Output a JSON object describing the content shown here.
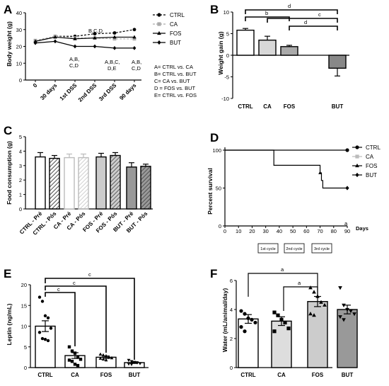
{
  "panels": {
    "A": {
      "letter": "A",
      "ylabel": "Body weight (g)",
      "yticks": [
        "0",
        "10",
        "20",
        "30",
        "40"
      ],
      "xticks": [
        "0",
        "30 days",
        "1st DSS",
        "2nd DSS",
        "3rd DSS",
        "90 days"
      ],
      "legend": [
        {
          "name": "CTRL",
          "marker": "circle",
          "color": "#000000",
          "dash": "3,2"
        },
        {
          "name": "CA",
          "marker": "square",
          "color": "#aaaaaa",
          "dash": "3,2"
        },
        {
          "name": "FOS",
          "marker": "triangle",
          "color": "#000000",
          "dash": ""
        },
        {
          "name": "BUT",
          "marker": "diamond",
          "color": "#000000",
          "dash": ""
        }
      ],
      "annotations": {
        "a1": "B,C,D",
        "a2_1": "A,B,",
        "a2_2": "C,D",
        "a3_1": "A,B,C,",
        "a3_2": "D,E",
        "a4_1": "A,B,",
        "a4_2": "C,D"
      },
      "key": [
        "A= CTRL vs. CA",
        "B= CTRL vs. BUT",
        "C= CA vs. BUT",
        "D = FOS vs. BUT",
        "E= CTRL vs. FOS"
      ]
    },
    "B": {
      "letter": "B",
      "ylabel": "Weight gain (g)",
      "yticks": [
        "10",
        "5",
        "0",
        "-5",
        "-10"
      ],
      "sig": {
        "d_top": "d",
        "b": "b",
        "c": "c",
        "d_mid": "d"
      }
    },
    "C": {
      "letter": "C",
      "ylabel": "Food consumption (g)",
      "yticks": [
        "0",
        "1",
        "2",
        "3",
        "4",
        "5"
      ]
    },
    "D": {
      "letter": "D",
      "ylabel": "Percent survival",
      "yticks": [
        "0",
        "50",
        "100"
      ],
      "xticks": [
        "0",
        "10",
        "20",
        "30",
        "40",
        "50",
        "60",
        "70",
        "80",
        "90"
      ],
      "xunit": "Days",
      "legend": [
        "CTRL",
        "CA",
        "FOS",
        "BUT"
      ],
      "sig": "a",
      "cycles": [
        "1st cycle",
        "2nd cycle",
        "3rd cycle"
      ]
    },
    "E": {
      "letter": "E",
      "ylabel": "Leptin (ng/mL)",
      "yticks": [
        "0",
        "5",
        "10",
        "15",
        "20"
      ],
      "sig": {
        "c1": "c",
        "c2": "c",
        "c3": "c"
      }
    },
    "F": {
      "letter": "F",
      "ylabel": "Water (mL/animal/day)",
      "yticks": [
        "0",
        "2",
        "4",
        "6"
      ],
      "sig": {
        "a1": "a",
        "a2": "a"
      }
    }
  },
  "chart_data": [
    {
      "panel": "A",
      "type": "line",
      "ylabel": "Body weight (g)",
      "ylim": [
        0,
        40
      ],
      "categories": [
        "0",
        "30 days",
        "1st DSS",
        "2nd DSS",
        "3rd DSS",
        "90 days"
      ],
      "series": [
        {
          "name": "CTRL",
          "values": [
            23,
            26,
            26,
            27.5,
            28,
            30
          ]
        },
        {
          "name": "CA",
          "values": [
            23.5,
            26,
            25,
            25,
            24.5,
            24.5
          ]
        },
        {
          "name": "FOS",
          "values": [
            23,
            25.5,
            24.5,
            25,
            25.5,
            25.5
          ]
        },
        {
          "name": "BUT",
          "values": [
            22,
            23,
            20,
            20,
            19,
            19
          ]
        }
      ]
    },
    {
      "panel": "B",
      "type": "bar",
      "ylabel": "Weight gain (g)",
      "ylim": [
        -10,
        10
      ],
      "categories": [
        "CTRL",
        "CA",
        "FOS",
        "BUT"
      ],
      "values": [
        5.8,
        3.5,
        2,
        -3
      ],
      "errors": [
        0.4,
        0.9,
        0.3,
        1.8
      ],
      "colors": [
        "#ffffff",
        "#d8d8d8",
        "#aaaaaa",
        "#888888"
      ]
    },
    {
      "panel": "C",
      "type": "bar",
      "ylabel": "Food consumption (g)",
      "ylim": [
        0,
        5
      ],
      "categories": [
        "CTRL - Pré",
        "CTRL - Pós",
        "CA - Pré",
        "CA - Pós",
        "FOS - Pré",
        "FOS - Pós",
        "BUT - Pré",
        "BUT - Pós"
      ],
      "values": [
        3.6,
        3.5,
        3.55,
        3.55,
        3.6,
        3.7,
        2.9,
        2.95
      ],
      "errors": [
        0.3,
        0.2,
        0.25,
        0.25,
        0.25,
        0.2,
        0.3,
        0.15
      ],
      "colors": [
        "#ffffff",
        "#ffffff",
        "#ffffff",
        "#ffffff",
        "#cccccc",
        "#cccccc",
        "#999999",
        "#999999"
      ],
      "edge": [
        "#000000",
        "#000000",
        "#bbbbbb",
        "#bbbbbb",
        "#000000",
        "#000000",
        "#000000",
        "#000000"
      ],
      "hatched": [
        false,
        true,
        false,
        true,
        false,
        true,
        false,
        true
      ]
    },
    {
      "panel": "D",
      "type": "line",
      "ylabel": "Percent survival",
      "xlabel": "Days",
      "xlim": [
        0,
        90
      ],
      "ylim": [
        0,
        100
      ],
      "series": [
        {
          "name": "CTRL",
          "x": [
            0,
            90
          ],
          "y": [
            100,
            100
          ],
          "step": false
        },
        {
          "name": "BUT",
          "x": [
            0,
            36,
            36,
            70,
            70,
            71,
            71,
            72,
            72,
            90
          ],
          "y": [
            100,
            100,
            80,
            80,
            70,
            70,
            60,
            60,
            50,
            50
          ],
          "step": true
        }
      ]
    },
    {
      "panel": "E",
      "type": "bar",
      "ylabel": "Leptin (ng/mL)",
      "ylim": [
        0,
        20
      ],
      "categories": [
        "CTRL",
        "CA",
        "FOS",
        "BUT"
      ],
      "values": [
        10,
        2.9,
        2.5,
        1.2
      ],
      "errors": [
        1.3,
        0.7,
        0.3,
        0.2
      ],
      "points": [
        [
          17,
          16,
          12.5,
          12,
          9.5,
          8.5,
          7,
          6.8,
          6.5
        ],
        [
          5,
          4,
          3.5,
          2.5,
          2,
          1.8,
          1.5,
          0.8,
          0.5
        ],
        [
          3.2,
          3,
          2.8,
          2.5,
          2.3,
          2.2,
          2,
          1.8
        ],
        [
          1.8,
          1.5,
          1.3,
          1.2,
          1,
          0.9,
          0.8
        ]
      ],
      "colors": [
        "#ffffff",
        "#ffffff",
        "#ffffff",
        "#ffffff"
      ]
    },
    {
      "panel": "F",
      "type": "bar",
      "ylabel": "Water (mL/animal/day)",
      "ylim": [
        0,
        6
      ],
      "categories": [
        "CTRL",
        "CA",
        "FOS",
        "BUT"
      ],
      "values": [
        3.35,
        3.2,
        4.55,
        4
      ],
      "errors": [
        0.3,
        0.3,
        0.35,
        0.3
      ],
      "points": [
        [
          3.9,
          3.7,
          3.4,
          3.3,
          3.1,
          2.8,
          2.5
        ],
        [
          3.8,
          3.6,
          3.3,
          3.1,
          2.7,
          2.5
        ],
        [
          5.5,
          5.2,
          4.9,
          4.5,
          4.3,
          3.7,
          3.6
        ],
        [
          5.5,
          4.3,
          4,
          3.9,
          3.7,
          3.5,
          3.3
        ]
      ],
      "colors": [
        "#ffffff",
        "#dddddd",
        "#cccccc",
        "#999999"
      ]
    }
  ]
}
